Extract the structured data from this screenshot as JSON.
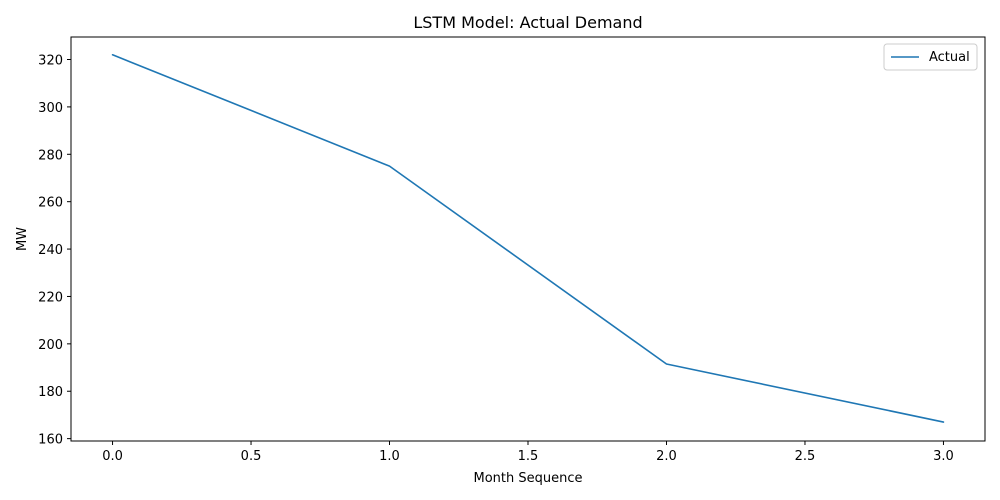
{
  "chart_data": {
    "type": "line",
    "title": "LSTM Model: Actual Demand",
    "xlabel": "Month Sequence",
    "ylabel": "MW",
    "xlim": [
      -0.15,
      3.15
    ],
    "ylim": [
      159,
      329.5
    ],
    "xticks": [
      0.0,
      0.5,
      1.0,
      1.5,
      2.0,
      2.5,
      3.0
    ],
    "xtick_labels": [
      "0.0",
      "0.5",
      "1.0",
      "1.5",
      "2.0",
      "2.5",
      "3.0"
    ],
    "yticks": [
      160,
      180,
      200,
      220,
      240,
      260,
      280,
      300,
      320
    ],
    "ytick_labels": [
      "160",
      "180",
      "200",
      "220",
      "240",
      "260",
      "280",
      "300",
      "320"
    ],
    "grid": false,
    "legend_position": "top-right",
    "series": [
      {
        "name": "Actual",
        "color": "#1f77b4",
        "x": [
          0,
          1,
          2,
          3
        ],
        "values": [
          322,
          275,
          191.5,
          167
        ]
      }
    ]
  }
}
